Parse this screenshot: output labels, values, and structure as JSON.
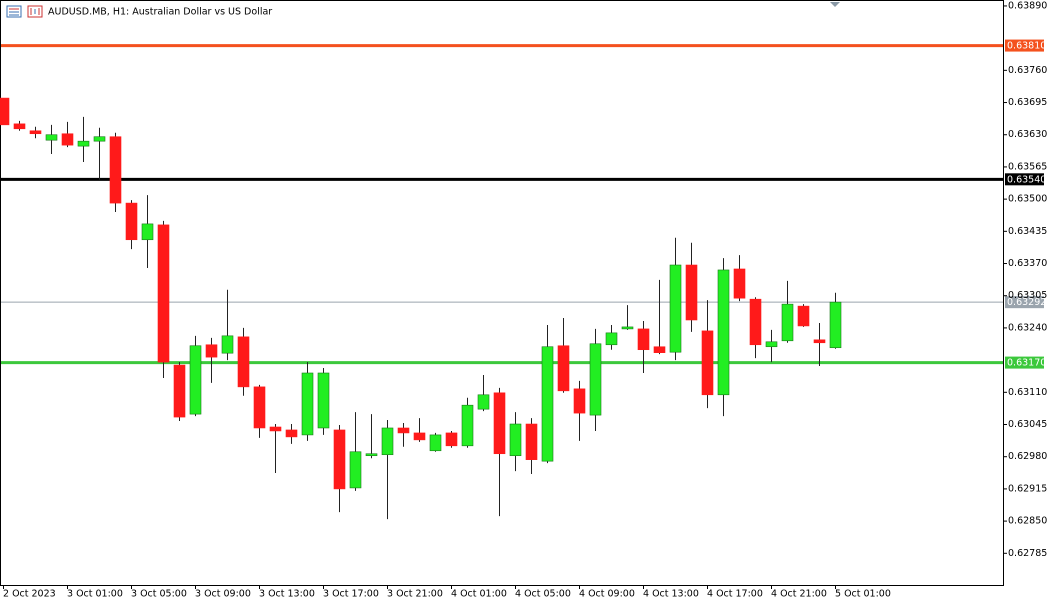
{
  "chart_data": {
    "type": "candlestick",
    "title": "AUDUSD.MB, H1:  Australian Dollar vs US Dollar",
    "categories": [
      "2 Oct 2023",
      null,
      null,
      null,
      "3 Oct 01:00",
      null,
      null,
      null,
      "3 Oct 05:00",
      null,
      null,
      null,
      "3 Oct 09:00",
      null,
      null,
      null,
      "3 Oct 13:00",
      null,
      null,
      null,
      "3 Oct 17:00",
      null,
      null,
      null,
      "3 Oct 21:00",
      null,
      null,
      null,
      "4 Oct 01:00",
      null,
      null,
      null,
      "4 Oct 05:00",
      null,
      null,
      null,
      "4 Oct 09:00",
      null,
      null,
      null,
      "4 Oct 13:00",
      null,
      null,
      null,
      "4 Oct 17:00",
      null,
      null,
      null,
      "4 Oct 21:00",
      null,
      null,
      null,
      "5 Oct 01:00"
    ],
    "open": [
      0.63704,
      0.63652,
      0.63638,
      0.63619,
      0.63632,
      0.63607,
      0.63617,
      0.63626,
      0.63492,
      0.63418,
      0.63448,
      0.63165,
      0.63066,
      0.63206,
      0.63189,
      0.63222,
      0.63121,
      0.6304,
      0.63034,
      0.63024,
      0.63038,
      0.63034,
      0.62917,
      0.62982,
      0.62984,
      0.63038,
      0.63028,
      0.62992,
      0.63028,
      0.63002,
      0.63076,
      0.63109,
      0.62982,
      0.63046,
      0.62971,
      0.63204,
      0.63117,
      0.63064,
      0.63206,
      0.63238,
      0.63238,
      0.63202,
      0.63191,
      0.63367,
      0.63234,
      0.63105,
      0.63359,
      0.63298,
      0.63202,
      0.63214,
      0.63284,
      0.63216,
      0.632
    ],
    "high": [
      0.63704,
      0.63658,
      0.63646,
      0.6365,
      0.63656,
      0.63666,
      0.63644,
      0.63634,
      0.63498,
      0.63508,
      0.63456,
      0.63171,
      0.63224,
      0.6322,
      0.63317,
      0.6324,
      0.63125,
      0.63046,
      0.63046,
      0.63171,
      0.63159,
      0.63044,
      0.6307,
      0.63066,
      0.63054,
      0.63048,
      0.63058,
      0.63028,
      0.63032,
      0.63099,
      0.63145,
      0.63119,
      0.6307,
      0.63058,
      0.63246,
      0.6326,
      0.63133,
      0.63238,
      0.63246,
      0.63286,
      0.63254,
      0.63337,
      0.63422,
      0.63412,
      0.63296,
      0.63381,
      0.63387,
      0.63302,
      0.63236,
      0.63335,
      0.63288,
      0.6325,
      0.63311
    ],
    "low": [
      0.6365,
      0.63638,
      0.63623,
      0.63591,
      0.63605,
      0.63575,
      0.63539,
      0.63474,
      0.63399,
      0.63361,
      0.63139,
      0.63052,
      0.63062,
      0.63129,
      0.63175,
      0.63103,
      0.63018,
      0.62947,
      0.63006,
      0.63012,
      0.63024,
      0.62868,
      0.62911,
      0.62977,
      0.62854,
      0.63,
      0.6301,
      0.6299,
      0.62998,
      0.62998,
      0.63072,
      0.6286,
      0.62951,
      0.62945,
      0.62967,
      0.63109,
      0.63012,
      0.63032,
      0.63196,
      0.63236,
      0.63149,
      0.63187,
      0.63175,
      0.63232,
      0.63078,
      0.63062,
      0.63294,
      0.63179,
      0.63171,
      0.6321,
      0.63242,
      0.63163,
      0.63198
    ],
    "close": [
      0.6365,
      0.63642,
      0.63632,
      0.6363,
      0.63609,
      0.63617,
      0.63626,
      0.63492,
      0.63418,
      0.6345,
      0.63171,
      0.6306,
      0.63204,
      0.63181,
      0.63224,
      0.63121,
      0.63038,
      0.63032,
      0.6302,
      0.63149,
      0.63149,
      0.62915,
      0.6299,
      0.62986,
      0.63038,
      0.63028,
      0.63014,
      0.63024,
      0.63002,
      0.63084,
      0.63105,
      0.62986,
      0.63046,
      0.62974,
      0.63202,
      0.63113,
      0.63068,
      0.63208,
      0.6323,
      0.63242,
      0.63196,
      0.6319,
      0.63367,
      0.63256,
      0.63105,
      0.63357,
      0.633,
      0.63206,
      0.63212,
      0.63288,
      0.63244,
      0.6321,
      0.63292
    ],
    "up_color": "#22ee22",
    "down_color": "#ff1a1a",
    "ylim": [
      0.62721,
      0.63902
    ],
    "yticks": [
      {
        "value": 0.6389,
        "label": "0.63890"
      },
      {
        "value": 0.6376,
        "label": "0.63760"
      },
      {
        "value": 0.63695,
        "label": "0.63695"
      },
      {
        "value": 0.6363,
        "label": "0.63630"
      },
      {
        "value": 0.63565,
        "label": "0.63565"
      },
      {
        "value": 0.635,
        "label": "0.63500"
      },
      {
        "value": 0.63435,
        "label": "0.63435"
      },
      {
        "value": 0.6337,
        "label": "0.63370"
      },
      {
        "value": 0.63305,
        "label": "0.63305"
      },
      {
        "value": 0.6324,
        "label": "0.63240"
      },
      {
        "value": 0.6311,
        "label": "0.63110"
      },
      {
        "value": 0.63045,
        "label": "0.63045"
      },
      {
        "value": 0.6298,
        "label": "0.62980"
      },
      {
        "value": 0.62915,
        "label": "0.62915"
      },
      {
        "value": 0.6285,
        "label": "0.62850"
      },
      {
        "value": 0.62785,
        "label": "0.62785"
      }
    ],
    "levels": [
      {
        "value": 0.6381,
        "label": "0.63810",
        "color": "#f4511e",
        "width": 3
      },
      {
        "value": 0.6354,
        "label": "0.63540",
        "color": "#000000",
        "width": 3
      },
      {
        "value": 0.63292,
        "label": "0.63292",
        "color": "#9aa4ad",
        "width": 1
      },
      {
        "value": 0.6317,
        "label": "0.63170",
        "color": "#3cc83c",
        "width": 3
      }
    ]
  }
}
